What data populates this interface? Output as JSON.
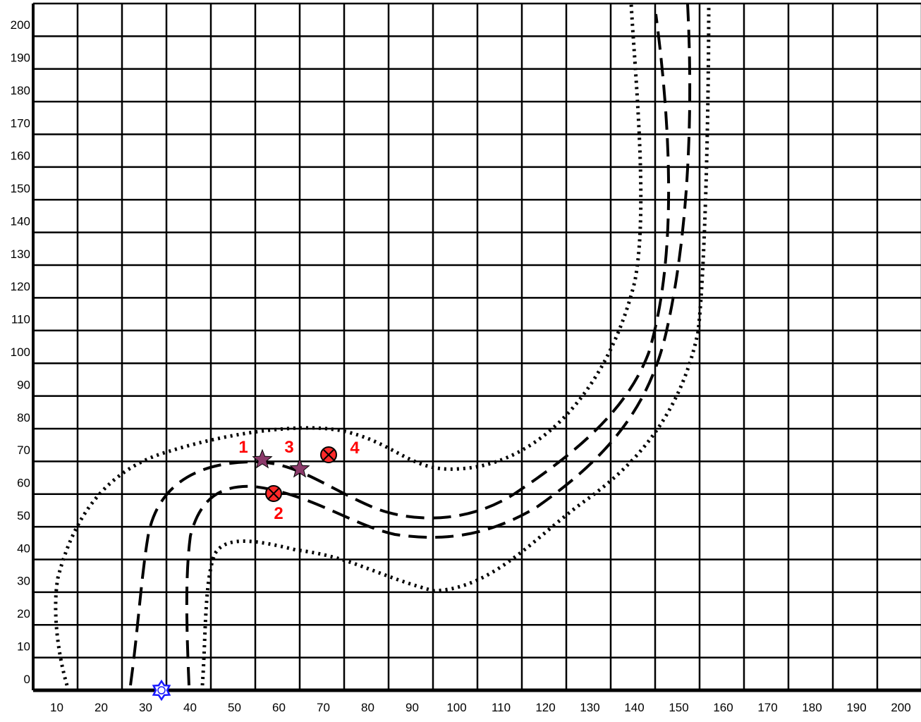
{
  "chart_data": {
    "type": "diagram",
    "x_ticks": [
      "10",
      "20",
      "30",
      "40",
      "50",
      "60",
      "70",
      "80",
      "90",
      "100",
      "110",
      "120",
      "130",
      "140",
      "150",
      "160",
      "170",
      "180",
      "190",
      "200"
    ],
    "y_ticks": [
      "0",
      "10",
      "20",
      "30",
      "40",
      "50",
      "60",
      "70",
      "80",
      "90",
      "100",
      "110",
      "120",
      "130",
      "140",
      "150",
      "160",
      "170",
      "180",
      "190",
      "200"
    ],
    "grid": true,
    "colors": {
      "grid": "#000000",
      "marker_label": "#ff0000",
      "circle_marker": "#ff2a2a",
      "star_marker": "#8b3a6a",
      "origin_marker": "#1a1aff"
    },
    "markers": [
      {
        "id": "1",
        "label": "1",
        "shape": "star-icon"
      },
      {
        "id": "2",
        "label": "2",
        "shape": "crossed-circle-icon"
      },
      {
        "id": "3",
        "label": "3",
        "shape": "star-icon"
      },
      {
        "id": "4",
        "label": "4",
        "shape": "crossed-circle-icon"
      }
    ],
    "origin_marker": {
      "shape": "sun-icon"
    }
  }
}
